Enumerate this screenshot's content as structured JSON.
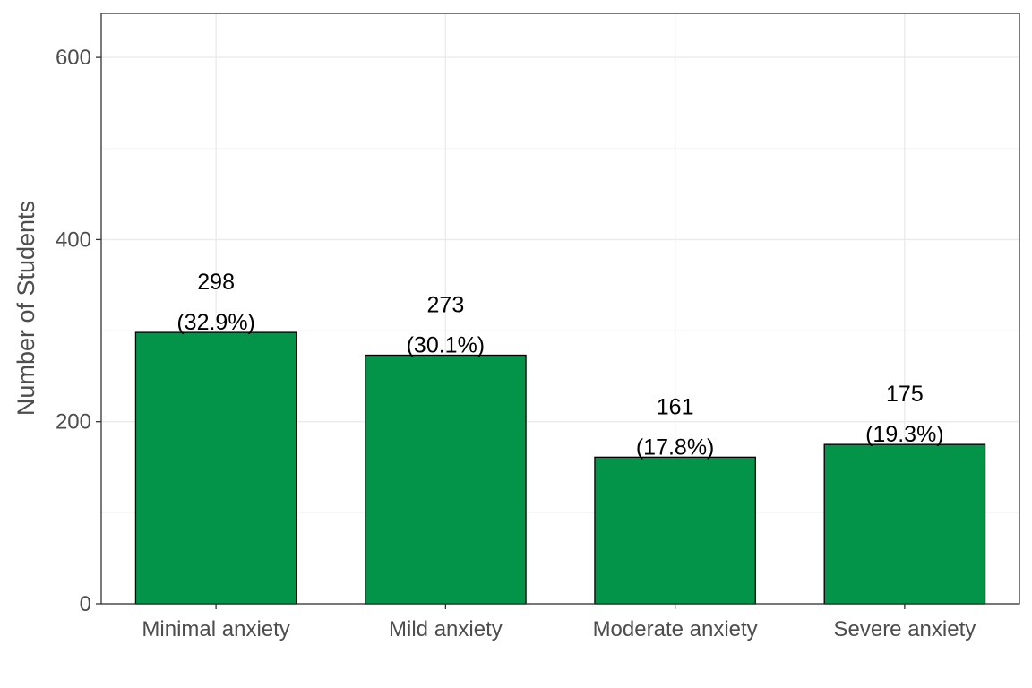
{
  "chart_data": {
    "type": "bar",
    "title": "",
    "xlabel": "",
    "ylabel": "Number of Students",
    "categories": [
      "Minimal anxiety",
      "Mild anxiety",
      "Moderate anxiety",
      "Severe anxiety"
    ],
    "values": [
      298,
      273,
      161,
      175
    ],
    "percent_labels": [
      "(32.9%)",
      "(30.1%)",
      "(17.8%)",
      "(19.3%)"
    ],
    "ylim": [
      0,
      650
    ],
    "yticks": [
      0,
      200,
      400,
      600
    ],
    "grid": true,
    "legend": "none",
    "colors": {
      "bar_fill": "#039449",
      "bar_stroke": "#000000",
      "grid_major": "#ebebeb",
      "grid_minor": "#f5f5f5",
      "panel_border": "#333333",
      "axis_text": "#4d4d4d"
    }
  }
}
